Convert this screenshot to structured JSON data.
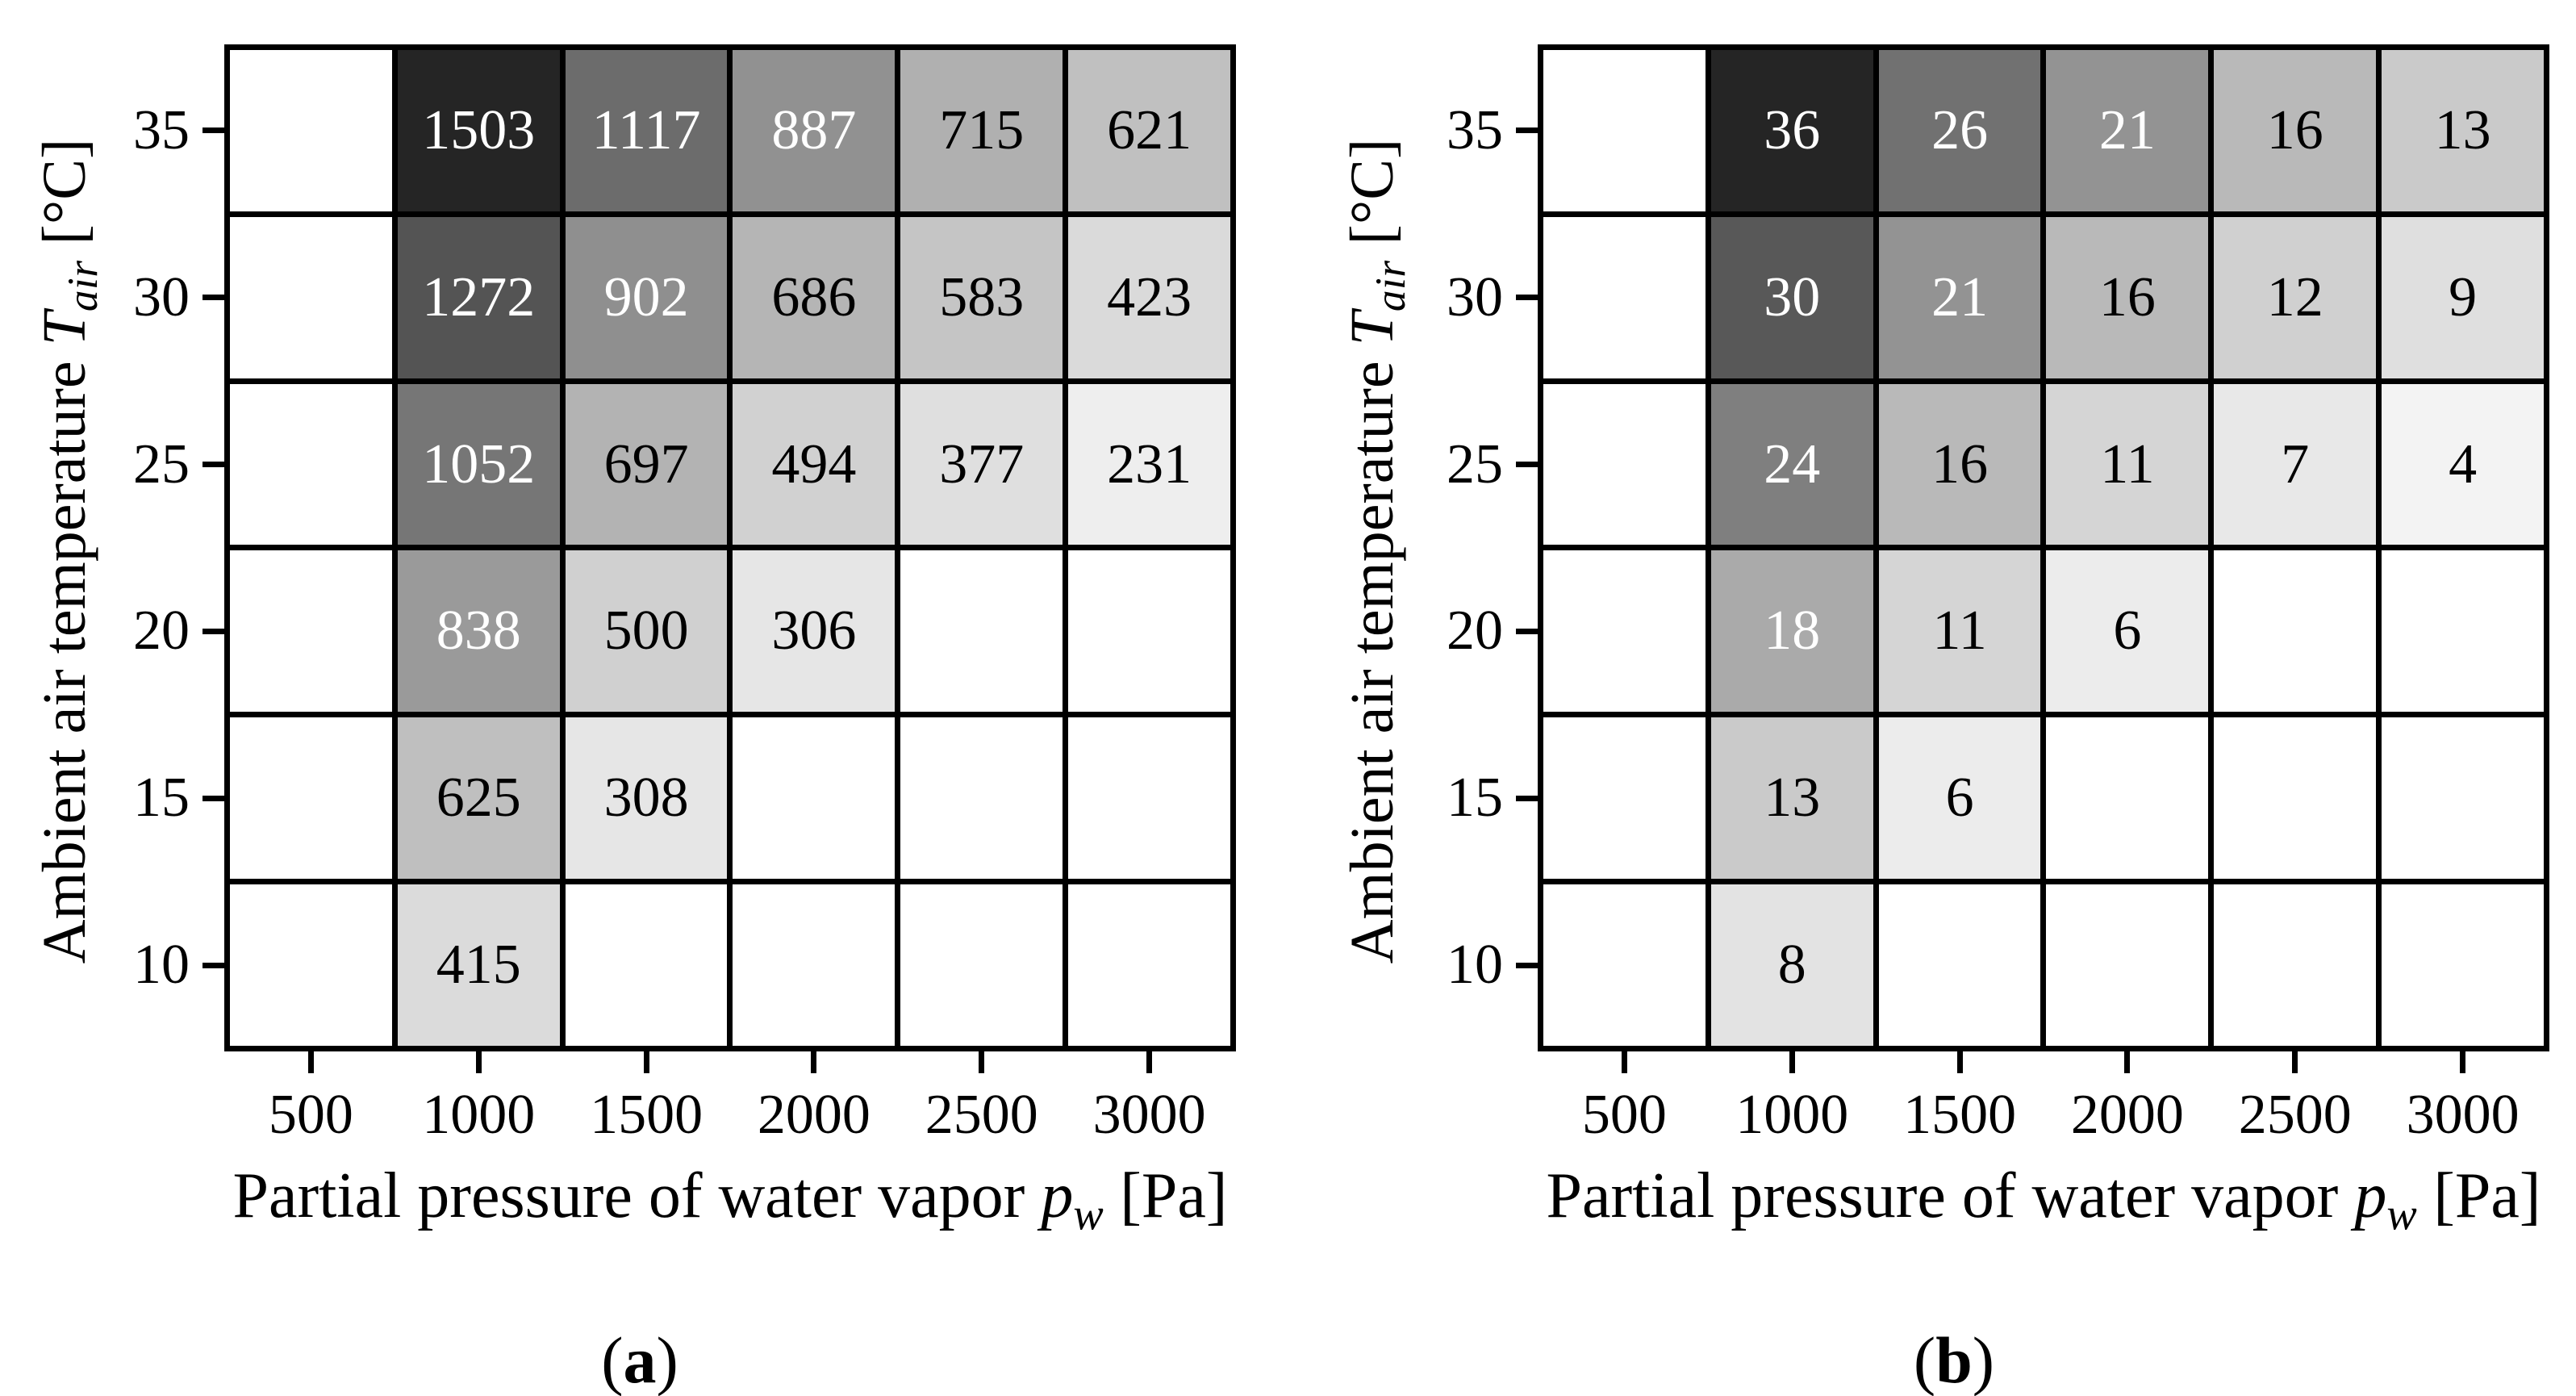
{
  "figure": {
    "background": "#ffffff",
    "grid_color": "#000000",
    "text_color": "#000000",
    "colormap": "Greys",
    "x_axis": {
      "label_prefix": "Partial pressure of water vapor ",
      "label_symbol": "p",
      "label_subscript": "w",
      "label_suffix": " [Pa]",
      "ticks": [
        "500",
        "1000",
        "1500",
        "2000",
        "2500",
        "3000"
      ]
    },
    "y_axis": {
      "label_prefix": "Ambient air temperature ",
      "label_symbol": "T",
      "label_subscript": "air",
      "label_suffix": " [°C]",
      "ticks": [
        "35",
        "30",
        "25",
        "20",
        "15",
        "10"
      ]
    }
  },
  "chart_data": [
    {
      "type": "heatmap",
      "caption_open": "(",
      "caption_letter": "a",
      "caption_close": ")",
      "caption": "(a)",
      "xlabel": "Partial pressure of water vapor pw [Pa]",
      "ylabel": "Ambient air temperature Tair [°C]",
      "x": [
        500,
        1000,
        1500,
        2000,
        2500,
        3000
      ],
      "y": [
        35,
        30,
        25,
        20,
        15,
        10
      ],
      "annotated": true,
      "values": [
        [
          null,
          1503,
          1117,
          887,
          715,
          621
        ],
        [
          null,
          1272,
          902,
          686,
          583,
          423
        ],
        [
          null,
          1052,
          697,
          494,
          377,
          231
        ],
        [
          null,
          838,
          500,
          306,
          null,
          null
        ],
        [
          null,
          625,
          308,
          null,
          null,
          null
        ],
        [
          null,
          415,
          null,
          null,
          null,
          null
        ]
      ],
      "cell_colors": [
        [
          null,
          "#252525",
          "#6c6c6c",
          "#919191",
          "#b0b0b0",
          "#c0c0c0"
        ],
        [
          null,
          "#545454",
          "#8f8f8f",
          "#b5b5b5",
          "#c5c5c5",
          "#dadada"
        ],
        [
          null,
          "#767676",
          "#b3b3b3",
          "#d1d1d1",
          "#dfdfdf",
          "#eeeeee"
        ],
        [
          null,
          "#9a9a9a",
          "#d0d0d0",
          "#e6e6e6",
          null,
          null
        ],
        [
          null,
          "#bfbfbf",
          "#e6e6e6",
          null,
          null,
          null
        ],
        [
          null,
          "#dbdbdb",
          null,
          null,
          null,
          null
        ]
      ]
    },
    {
      "type": "heatmap",
      "caption_open": "(",
      "caption_letter": "b",
      "caption_close": ")",
      "caption": "(b)",
      "xlabel": "Partial pressure of water vapor pw [Pa]",
      "ylabel": "Ambient air temperature Tair [°C]",
      "x": [
        500,
        1000,
        1500,
        2000,
        2500,
        3000
      ],
      "y": [
        35,
        30,
        25,
        20,
        15,
        10
      ],
      "annotated": true,
      "values": [
        [
          null,
          36,
          26,
          21,
          16,
          13
        ],
        [
          null,
          30,
          21,
          16,
          12,
          9
        ],
        [
          null,
          24,
          16,
          11,
          7,
          4
        ],
        [
          null,
          18,
          11,
          6,
          null,
          null
        ],
        [
          null,
          13,
          6,
          null,
          null,
          null
        ],
        [
          null,
          8,
          null,
          null,
          null,
          null
        ]
      ],
      "cell_colors": [
        [
          null,
          "#252525",
          "#717171",
          "#939393",
          "#b9b9b9",
          "#cacaca"
        ],
        [
          null,
          "#585858",
          "#939393",
          "#b9b9b9",
          "#d0d0d0",
          "#dfdfdf"
        ],
        [
          null,
          "#7f7f7f",
          "#b9b9b9",
          "#d5d5d5",
          "#e8e8e8",
          "#f3f3f3"
        ],
        [
          null,
          "#aaaaaa",
          "#d5d5d5",
          "#ececec",
          null,
          null
        ],
        [
          null,
          "#cacaca",
          "#ececec",
          null,
          null,
          null
        ],
        [
          null,
          "#e3e3e3",
          null,
          null,
          null,
          null
        ]
      ]
    }
  ]
}
